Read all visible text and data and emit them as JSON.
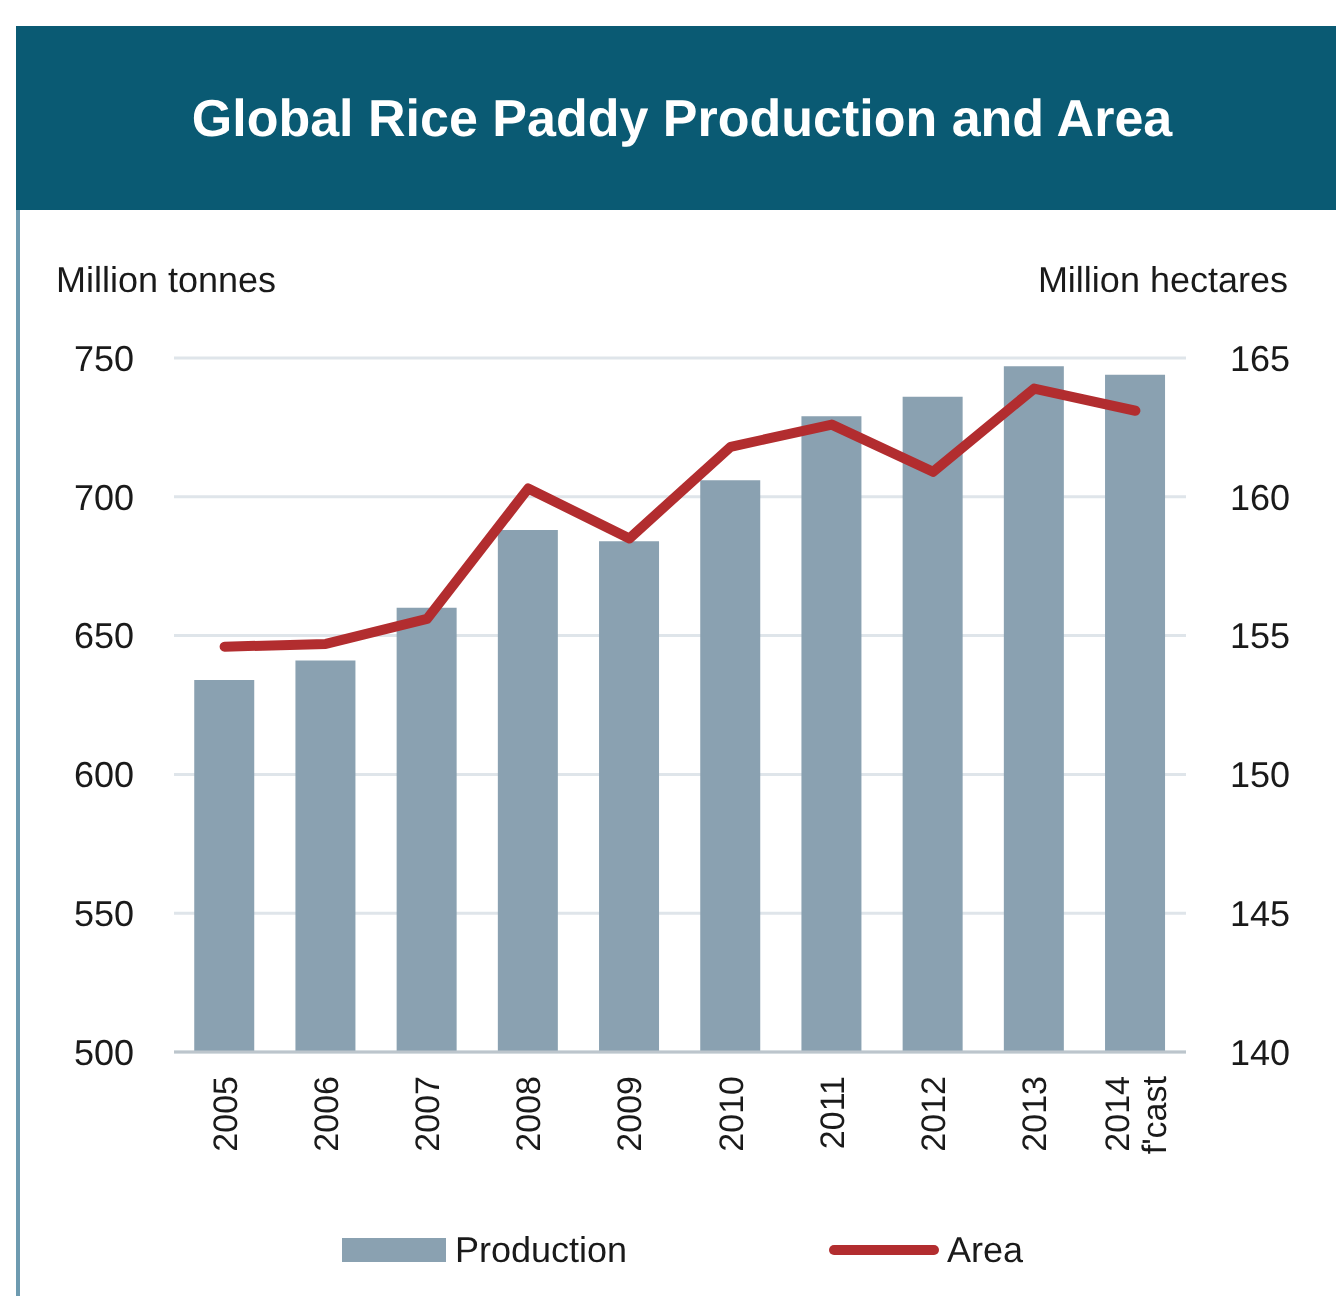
{
  "chart_data": {
    "type": "bar",
    "title": "Global Rice Paddy Production and Area",
    "ylabel": "Million tonnes",
    "y2label": "Million hectares",
    "categories": [
      "2005",
      "2006",
      "2007",
      "2008",
      "2009",
      "2010",
      "2011",
      "2012",
      "2013",
      "2014 f'cast"
    ],
    "series": [
      {
        "name": "Production",
        "color": "#8aa1b1",
        "values": [
          634,
          641,
          660,
          688,
          684,
          706,
          729,
          736,
          747,
          744
        ]
      },
      {
        "name": "Area",
        "type": "line",
        "axis": "y2",
        "color": "#b22d2f",
        "values": [
          154.6,
          154.7,
          155.6,
          160.3,
          158.5,
          161.8,
          162.6,
          160.9,
          163.9,
          163.1
        ]
      }
    ],
    "ylim": [
      500,
      750
    ],
    "yticks": [
      500,
      550,
      600,
      650,
      700,
      750
    ],
    "y2lim": [
      140,
      165
    ],
    "y2ticks": [
      140,
      145,
      150,
      155,
      160,
      165
    ],
    "grid": "y",
    "legend": "bottom",
    "marker": "none"
  }
}
